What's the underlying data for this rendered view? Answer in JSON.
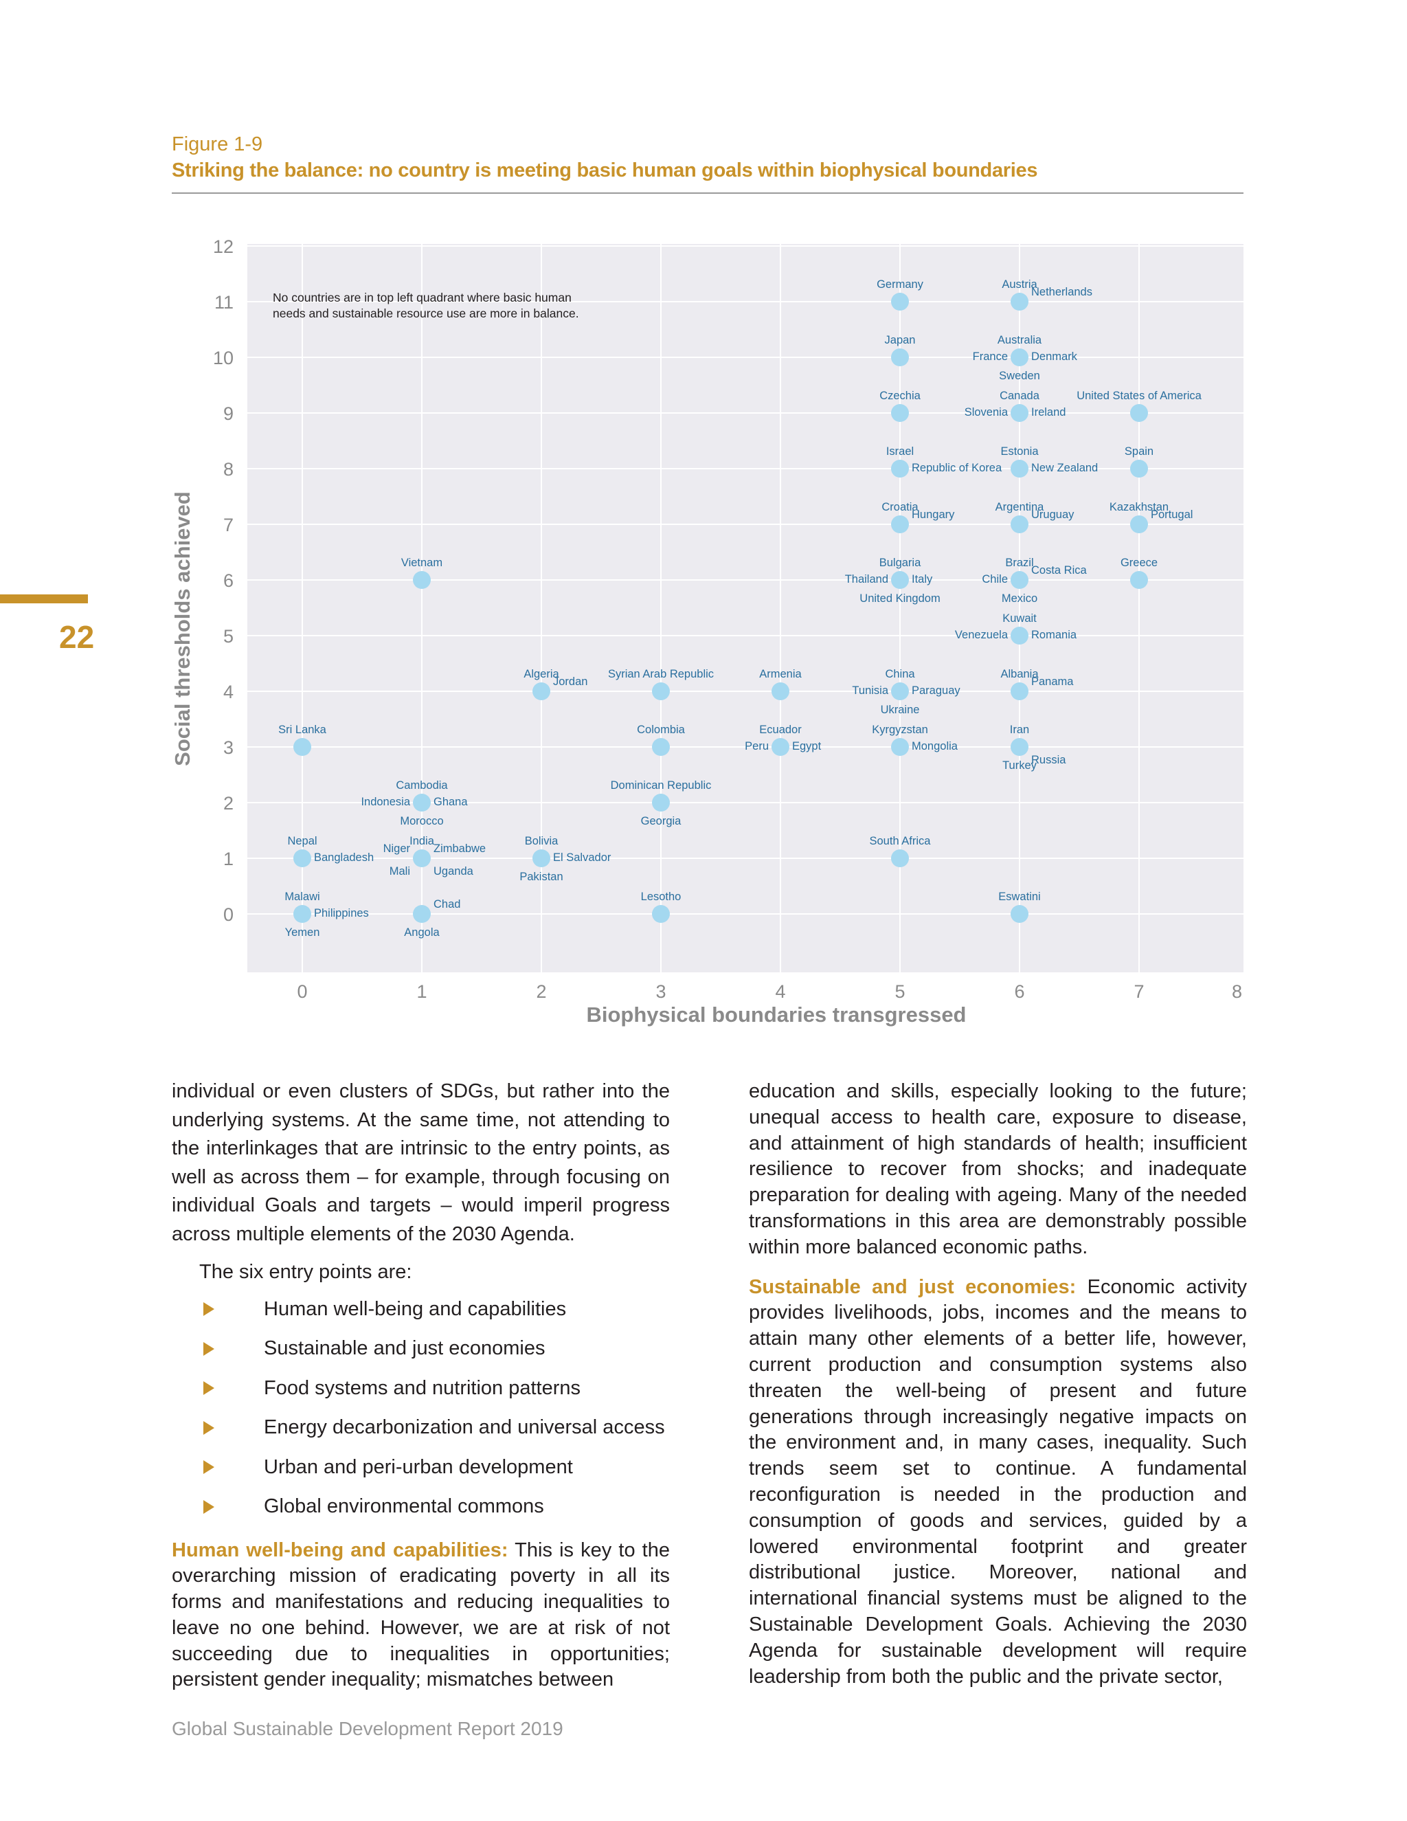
{
  "figure": {
    "label": "Figure 1-9",
    "title": "Striking the balance: no country is meeting basic human goals within biophysical boundaries"
  },
  "page_number": "22",
  "chart_data": {
    "type": "scatter",
    "xlabel": "Biophysical boundaries transgressed",
    "ylabel": "Social thresholds achieved",
    "xlim": [
      0,
      8
    ],
    "ylim": [
      0,
      12
    ],
    "x_ticks": [
      "0",
      "1",
      "2",
      "3",
      "4",
      "5",
      "6",
      "7",
      "8"
    ],
    "y_ticks": [
      "0",
      "1",
      "2",
      "3",
      "4",
      "5",
      "6",
      "7",
      "8",
      "9",
      "10",
      "11",
      "12"
    ],
    "grid": true,
    "point_color": "#a4d8f0",
    "background_color": "#ecebf0",
    "annotation": [
      "No countries are in top left quadrant where basic human",
      "needs and sustainable resource use are more in balance."
    ],
    "points": [
      {
        "x": 5,
        "y": 11,
        "labels": [
          {
            "text": "Germany",
            "pos": "above"
          }
        ]
      },
      {
        "x": 6,
        "y": 11,
        "labels": [
          {
            "text": "Austria",
            "pos": "above"
          },
          {
            "text": "Netherlands",
            "pos": "upright"
          }
        ]
      },
      {
        "x": 5,
        "y": 10,
        "labels": [
          {
            "text": "Japan",
            "pos": "above"
          }
        ]
      },
      {
        "x": 6,
        "y": 10,
        "labels": [
          {
            "text": "Australia",
            "pos": "above"
          },
          {
            "text": "France",
            "pos": "left"
          },
          {
            "text": "Denmark",
            "pos": "right"
          },
          {
            "text": "Sweden",
            "pos": "below"
          }
        ]
      },
      {
        "x": 5,
        "y": 9,
        "labels": [
          {
            "text": "Czechia",
            "pos": "above"
          }
        ]
      },
      {
        "x": 6,
        "y": 9,
        "labels": [
          {
            "text": "Canada",
            "pos": "above"
          },
          {
            "text": "Slovenia",
            "pos": "left"
          },
          {
            "text": "Ireland",
            "pos": "right"
          }
        ]
      },
      {
        "x": 7,
        "y": 9,
        "labels": [
          {
            "text": "United States of America",
            "pos": "above"
          }
        ]
      },
      {
        "x": 5,
        "y": 8,
        "labels": [
          {
            "text": "Israel",
            "pos": "above"
          },
          {
            "text": "Republic of Korea",
            "pos": "right"
          }
        ]
      },
      {
        "x": 6,
        "y": 8,
        "labels": [
          {
            "text": "Estonia",
            "pos": "above"
          },
          {
            "text": "New Zealand",
            "pos": "right"
          }
        ]
      },
      {
        "x": 7,
        "y": 8,
        "labels": [
          {
            "text": "Spain",
            "pos": "above"
          }
        ]
      },
      {
        "x": 5,
        "y": 7,
        "labels": [
          {
            "text": "Croatia",
            "pos": "above"
          },
          {
            "text": "Hungary",
            "pos": "upright"
          }
        ]
      },
      {
        "x": 6,
        "y": 7,
        "labels": [
          {
            "text": "Argentina",
            "pos": "above"
          },
          {
            "text": "Uruguay",
            "pos": "upright"
          }
        ]
      },
      {
        "x": 7,
        "y": 7,
        "labels": [
          {
            "text": "Kazakhstan",
            "pos": "above"
          },
          {
            "text": "Portugal",
            "pos": "upright"
          }
        ]
      },
      {
        "x": 1,
        "y": 6,
        "labels": [
          {
            "text": "Vietnam",
            "pos": "above"
          }
        ]
      },
      {
        "x": 5,
        "y": 6,
        "labels": [
          {
            "text": "Bulgaria",
            "pos": "above"
          },
          {
            "text": "Thailand",
            "pos": "left"
          },
          {
            "text": "Italy",
            "pos": "right"
          },
          {
            "text": "United Kingdom",
            "pos": "below"
          }
        ]
      },
      {
        "x": 6,
        "y": 6,
        "labels": [
          {
            "text": "Brazil",
            "pos": "above"
          },
          {
            "text": "Chile",
            "pos": "left"
          },
          {
            "text": "Costa Rica",
            "pos": "upright"
          },
          {
            "text": "Mexico",
            "pos": "below"
          }
        ]
      },
      {
        "x": 7,
        "y": 6,
        "labels": [
          {
            "text": "Greece",
            "pos": "above"
          }
        ]
      },
      {
        "x": 6,
        "y": 5,
        "labels": [
          {
            "text": "Kuwait",
            "pos": "above"
          },
          {
            "text": "Venezuela",
            "pos": "left"
          },
          {
            "text": "Romania",
            "pos": "right"
          }
        ]
      },
      {
        "x": 2,
        "y": 4,
        "labels": [
          {
            "text": "Algeria",
            "pos": "above"
          },
          {
            "text": "Jordan",
            "pos": "upright"
          }
        ]
      },
      {
        "x": 3,
        "y": 4,
        "labels": [
          {
            "text": "Syrian Arab Republic",
            "pos": "above"
          }
        ]
      },
      {
        "x": 4,
        "y": 4,
        "labels": [
          {
            "text": "Armenia",
            "pos": "above"
          }
        ]
      },
      {
        "x": 5,
        "y": 4,
        "labels": [
          {
            "text": "China",
            "pos": "above"
          },
          {
            "text": "Tunisia",
            "pos": "left"
          },
          {
            "text": "Paraguay",
            "pos": "right"
          },
          {
            "text": "Ukraine",
            "pos": "below"
          }
        ]
      },
      {
        "x": 6,
        "y": 4,
        "labels": [
          {
            "text": "Albania",
            "pos": "above"
          },
          {
            "text": "Panama",
            "pos": "upright"
          }
        ]
      },
      {
        "x": 0,
        "y": 3,
        "labels": [
          {
            "text": "Sri Lanka",
            "pos": "above"
          }
        ]
      },
      {
        "x": 3,
        "y": 3,
        "labels": [
          {
            "text": "Colombia",
            "pos": "above"
          }
        ]
      },
      {
        "x": 4,
        "y": 3,
        "labels": [
          {
            "text": "Ecuador",
            "pos": "above"
          },
          {
            "text": "Peru",
            "pos": "left"
          },
          {
            "text": "Egypt",
            "pos": "right"
          }
        ]
      },
      {
        "x": 5,
        "y": 3,
        "labels": [
          {
            "text": "Kyrgyzstan",
            "pos": "above"
          },
          {
            "text": "Mongolia",
            "pos": "right"
          }
        ]
      },
      {
        "x": 6,
        "y": 3,
        "labels": [
          {
            "text": "Iran",
            "pos": "above"
          },
          {
            "text": "Russia",
            "pos": "downright"
          },
          {
            "text": "Turkey",
            "pos": "below"
          }
        ]
      },
      {
        "x": 1,
        "y": 2,
        "labels": [
          {
            "text": "Cambodia",
            "pos": "above"
          },
          {
            "text": "Indonesia",
            "pos": "left"
          },
          {
            "text": "Ghana",
            "pos": "right"
          },
          {
            "text": "Morocco",
            "pos": "below"
          }
        ]
      },
      {
        "x": 3,
        "y": 2,
        "labels": [
          {
            "text": "Dominican Republic",
            "pos": "above"
          },
          {
            "text": "Georgia",
            "pos": "below"
          }
        ]
      },
      {
        "x": 0,
        "y": 1,
        "labels": [
          {
            "text": "Nepal",
            "pos": "above"
          },
          {
            "text": "Bangladesh",
            "pos": "right"
          }
        ]
      },
      {
        "x": 1,
        "y": 1,
        "labels": [
          {
            "text": "India",
            "pos": "above"
          },
          {
            "text": "Niger",
            "pos": "upleft"
          },
          {
            "text": "Zimbabwe",
            "pos": "upright"
          },
          {
            "text": "Mali",
            "pos": "downleft"
          },
          {
            "text": "Uganda",
            "pos": "downright"
          }
        ]
      },
      {
        "x": 2,
        "y": 1,
        "labels": [
          {
            "text": "Bolivia",
            "pos": "above"
          },
          {
            "text": "El Salvador",
            "pos": "right"
          },
          {
            "text": "Pakistan",
            "pos": "below"
          }
        ]
      },
      {
        "x": 5,
        "y": 1,
        "labels": [
          {
            "text": "South Africa",
            "pos": "above"
          }
        ]
      },
      {
        "x": 0,
        "y": 0,
        "labels": [
          {
            "text": "Malawi",
            "pos": "above"
          },
          {
            "text": "Philippines",
            "pos": "right"
          },
          {
            "text": "Yemen",
            "pos": "below"
          }
        ]
      },
      {
        "x": 1,
        "y": 0,
        "labels": [
          {
            "text": "Chad",
            "pos": "upright"
          },
          {
            "text": "Angola",
            "pos": "below"
          }
        ]
      },
      {
        "x": 3,
        "y": 0,
        "labels": [
          {
            "text": "Lesotho",
            "pos": "above"
          }
        ]
      },
      {
        "x": 6,
        "y": 0,
        "labels": [
          {
            "text": "Eswatini",
            "pos": "above"
          }
        ]
      }
    ]
  },
  "body": {
    "left_paragraph": "individual or even clusters of SDGs, but rather into the underlying systems. At the same time, not attending to the interlinkages that are intrinsic to the entry points, as well as across them – for example, through focusing on individual Goals and targets – would imperil progress across multiple elements of the 2030 Agenda.",
    "entry_intro": "The six entry points are:",
    "entry_points": [
      "Human well-being and capabilities",
      "Sustainable and just economies",
      "Food systems and nutrition patterns",
      "Energy decarbonization and universal access",
      "Urban and peri-urban development",
      "Global environmental commons"
    ],
    "human_heading": "Human well-being and capabilities:",
    "human_text": " This is key to the overarching mission of eradicating poverty in all its forms and manifestations and reducing inequalities to leave no one behind. However, we are at risk of not succeeding due to inequalities in opportunities; persistent gender inequality; mismatches between",
    "right_paragraph": "education and skills, especially looking to the future; unequal access to health care, exposure to disease, and attainment of high standards of health; insufficient resilience to recover from shocks; and inadequate preparation for dealing with ageing. Many of the needed transformations in this area are demonstrably possible within more balanced economic paths.",
    "sustainable_heading": "Sustainable and just economies:",
    "sustainable_text": " Economic activity provides livelihoods, jobs, incomes and the means to attain many other elements of a better life, however, current production and consumption systems also threaten the well-being of present and future generations through increasingly negative impacts on the environment and, in many cases, inequality. Such trends seem set to continue. A fundamental reconfiguration is needed in the production and consumption of goods and services, guided by a lowered environmental footprint and greater distributional justice. Moreover, national and international financial systems must be aligned to the Sustainable Development Goals. Achieving the 2030 Agenda for sustainable development will require leadership from both the public and the private sector,"
  },
  "footer": "Global Sustainable Development Report 2019"
}
